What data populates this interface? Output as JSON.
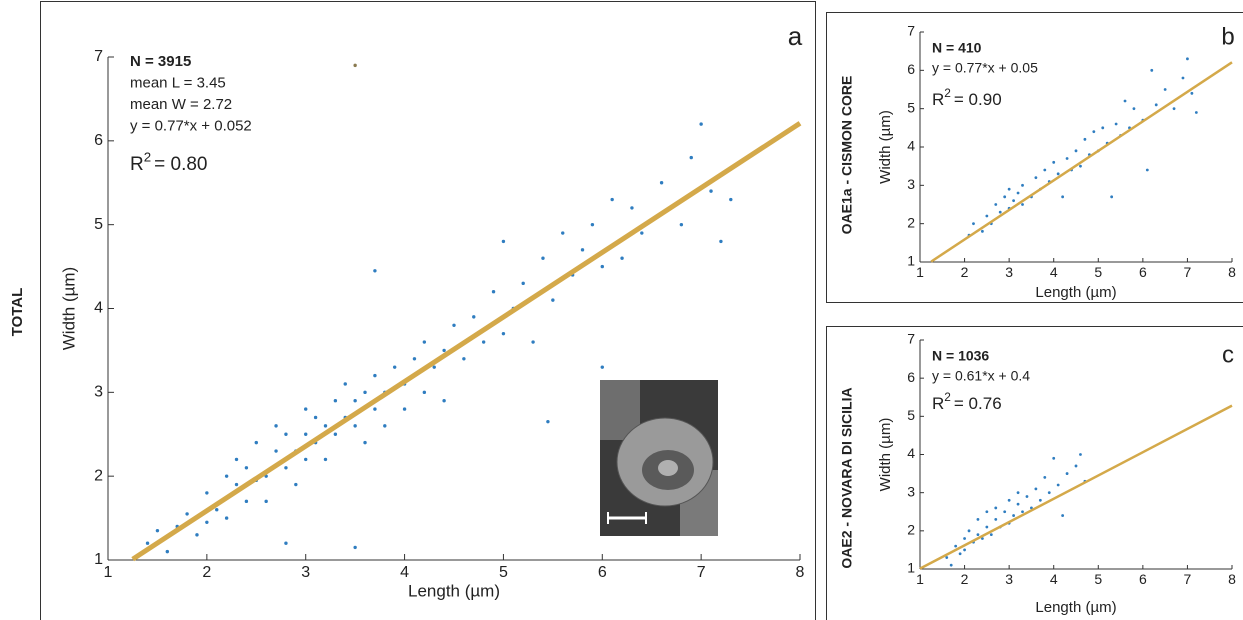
{
  "chart_data": [
    {
      "type": "scatter",
      "panel": "a",
      "row_label": "TOTAL",
      "xlabel": "Length (µm)",
      "ylabel": "Width (µm)",
      "annotations": [
        "N = 3915",
        "mean L = 3.45",
        "mean W = 2.72",
        "y = 0.77*x + 0.052"
      ],
      "r2": {
        "base": "R",
        "sup": "2",
        "text": "= 0.80"
      },
      "series": [
        {
          "color": "#2f7dc0",
          "x": [
            1.4,
            1.5,
            1.6,
            1.7,
            1.8,
            1.9,
            2.0,
            2.0,
            2.1,
            2.2,
            2.2,
            2.3,
            2.3,
            2.4,
            2.4,
            2.5,
            2.5,
            2.6,
            2.6,
            2.7,
            2.7,
            2.8,
            2.8,
            2.9,
            2.9,
            3.0,
            3.0,
            3.0,
            3.1,
            3.1,
            3.2,
            3.2,
            3.3,
            3.3,
            3.4,
            3.4,
            3.5,
            3.5,
            3.6,
            3.6,
            3.7,
            3.7,
            3.7,
            3.8,
            3.8,
            3.9,
            4.0,
            4.0,
            4.1,
            4.2,
            4.2,
            4.3,
            4.4,
            4.4,
            4.5,
            4.6,
            4.7,
            4.8,
            4.9,
            5.0,
            5.0,
            5.1,
            5.2,
            5.3,
            5.4,
            5.5,
            5.6,
            5.7,
            5.8,
            5.9,
            6.0,
            6.0,
            6.1,
            6.2,
            6.3,
            6.4,
            6.6,
            6.8,
            6.9,
            7.0,
            7.1,
            7.2,
            7.3,
            5.45,
            3.5,
            2.8
          ],
          "y": [
            1.2,
            1.35,
            1.1,
            1.4,
            1.55,
            1.3,
            1.8,
            1.45,
            1.6,
            2.0,
            1.5,
            1.9,
            2.2,
            1.7,
            2.1,
            1.95,
            2.4,
            2.0,
            1.7,
            2.3,
            2.6,
            2.1,
            2.5,
            2.3,
            1.9,
            2.5,
            2.8,
            2.2,
            2.4,
            2.7,
            2.6,
            2.2,
            2.9,
            2.5,
            2.7,
            3.1,
            2.6,
            2.9,
            3.0,
            2.4,
            4.45,
            2.8,
            3.2,
            3.0,
            2.6,
            3.3,
            3.1,
            2.8,
            3.4,
            3.0,
            3.6,
            3.3,
            3.5,
            2.9,
            3.8,
            3.4,
            3.9,
            3.6,
            4.2,
            3.7,
            4.8,
            4.0,
            4.3,
            3.6,
            4.6,
            4.1,
            4.9,
            4.4,
            4.7,
            5.0,
            3.3,
            4.5,
            5.3,
            4.6,
            5.2,
            4.9,
            5.5,
            5.0,
            5.8,
            6.2,
            5.4,
            4.8,
            5.3,
            2.65,
            1.15,
            1.2
          ]
        },
        {
          "color": "#8a7a50",
          "x": [
            3.5
          ],
          "y": [
            6.9
          ]
        }
      ],
      "fit": {
        "color": "#d4a94a",
        "x": [
          1.25,
          8
        ],
        "y": [
          1.01,
          6.21
        ]
      },
      "xlim": [
        1,
        8
      ],
      "ylim": [
        1,
        7
      ],
      "xticks": [
        1,
        2,
        3,
        4,
        5,
        6,
        7,
        8
      ],
      "yticks": [
        1,
        2,
        3,
        4,
        5,
        6,
        7
      ],
      "grid": false
    },
    {
      "type": "scatter",
      "panel": "b",
      "row_label": "OAE1a - CISMON CORE",
      "xlabel": "Length (µm)",
      "ylabel": "Width (µm)",
      "annotations": [
        "N = 410",
        "y = 0.77*x + 0.05"
      ],
      "r2": {
        "base": "R",
        "sup": "2",
        "text": "= 0.90"
      },
      "series": [
        {
          "color": "#2f7dc0",
          "x": [
            2.1,
            2.2,
            2.4,
            2.5,
            2.6,
            2.7,
            2.8,
            2.9,
            3.0,
            3.0,
            3.1,
            3.2,
            3.3,
            3.3,
            3.5,
            3.6,
            3.7,
            3.8,
            3.9,
            4.0,
            4.1,
            4.2,
            4.3,
            4.4,
            4.5,
            4.6,
            4.7,
            4.8,
            4.9,
            5.0,
            5.1,
            5.2,
            5.3,
            5.4,
            5.5,
            5.6,
            5.7,
            5.8,
            6.0,
            6.1,
            6.2,
            6.3,
            6.5,
            6.7,
            6.9,
            7.0,
            7.1,
            7.2
          ],
          "y": [
            1.7,
            2.0,
            1.8,
            2.2,
            2.0,
            2.5,
            2.3,
            2.7,
            2.4,
            2.9,
            2.6,
            2.8,
            2.5,
            3.0,
            2.7,
            3.2,
            2.9,
            3.4,
            3.1,
            3.6,
            3.3,
            2.7,
            3.7,
            3.4,
            3.9,
            3.5,
            4.2,
            3.8,
            4.4,
            3.9,
            4.5,
            4.1,
            2.7,
            4.6,
            4.3,
            5.2,
            4.5,
            5.0,
            4.7,
            3.4,
            6.0,
            5.1,
            5.5,
            5.0,
            5.8,
            6.3,
            5.4,
            4.9
          ]
        }
      ],
      "fit": {
        "color": "#d4a94a",
        "x": [
          1.25,
          8
        ],
        "y": [
          1.01,
          6.21
        ]
      },
      "xlim": [
        1,
        8
      ],
      "ylim": [
        1,
        7
      ],
      "xticks": [
        1,
        2,
        3,
        4,
        5,
        6,
        7,
        8
      ],
      "yticks": [
        1,
        2,
        3,
        4,
        5,
        6,
        7
      ],
      "grid": false
    },
    {
      "type": "scatter",
      "panel": "c",
      "row_label": "OAE2 - NOVARA DI SICILIA",
      "xlabel": "Length (µm)",
      "ylabel": "Width (µm)",
      "annotations": [
        "N = 1036",
        "y = 0.61*x + 0.4"
      ],
      "r2": {
        "base": "R",
        "sup": "2",
        "text": "= 0.76"
      },
      "series": [
        {
          "color": "#2f7dc0",
          "x": [
            1.6,
            1.7,
            1.8,
            1.9,
            2.0,
            2.0,
            2.1,
            2.2,
            2.3,
            2.3,
            2.4,
            2.5,
            2.5,
            2.6,
            2.7,
            2.7,
            2.8,
            2.9,
            3.0,
            3.0,
            3.1,
            3.2,
            3.2,
            3.3,
            3.4,
            3.5,
            3.6,
            3.7,
            3.8,
            3.9,
            4.0,
            4.1,
            4.2,
            4.3,
            4.5,
            4.6,
            4.7
          ],
          "y": [
            1.3,
            1.1,
            1.6,
            1.4,
            1.8,
            1.5,
            2.0,
            1.7,
            1.9,
            2.3,
            1.8,
            2.1,
            2.5,
            1.9,
            2.3,
            2.6,
            2.1,
            2.5,
            2.2,
            2.8,
            2.4,
            2.7,
            3.0,
            2.5,
            2.9,
            2.6,
            3.1,
            2.8,
            3.4,
            3.0,
            3.9,
            3.2,
            2.4,
            3.5,
            3.7,
            4.0,
            3.3
          ]
        }
      ],
      "fit": {
        "color": "#d4a94a",
        "x": [
          1,
          8
        ],
        "y": [
          1.01,
          5.28
        ]
      },
      "xlim": [
        1,
        8
      ],
      "ylim": [
        1,
        7
      ],
      "xticks": [
        1,
        2,
        3,
        4,
        5,
        6,
        7,
        8
      ],
      "yticks": [
        1,
        2,
        3,
        4,
        5,
        6,
        7
      ],
      "grid": false
    }
  ]
}
